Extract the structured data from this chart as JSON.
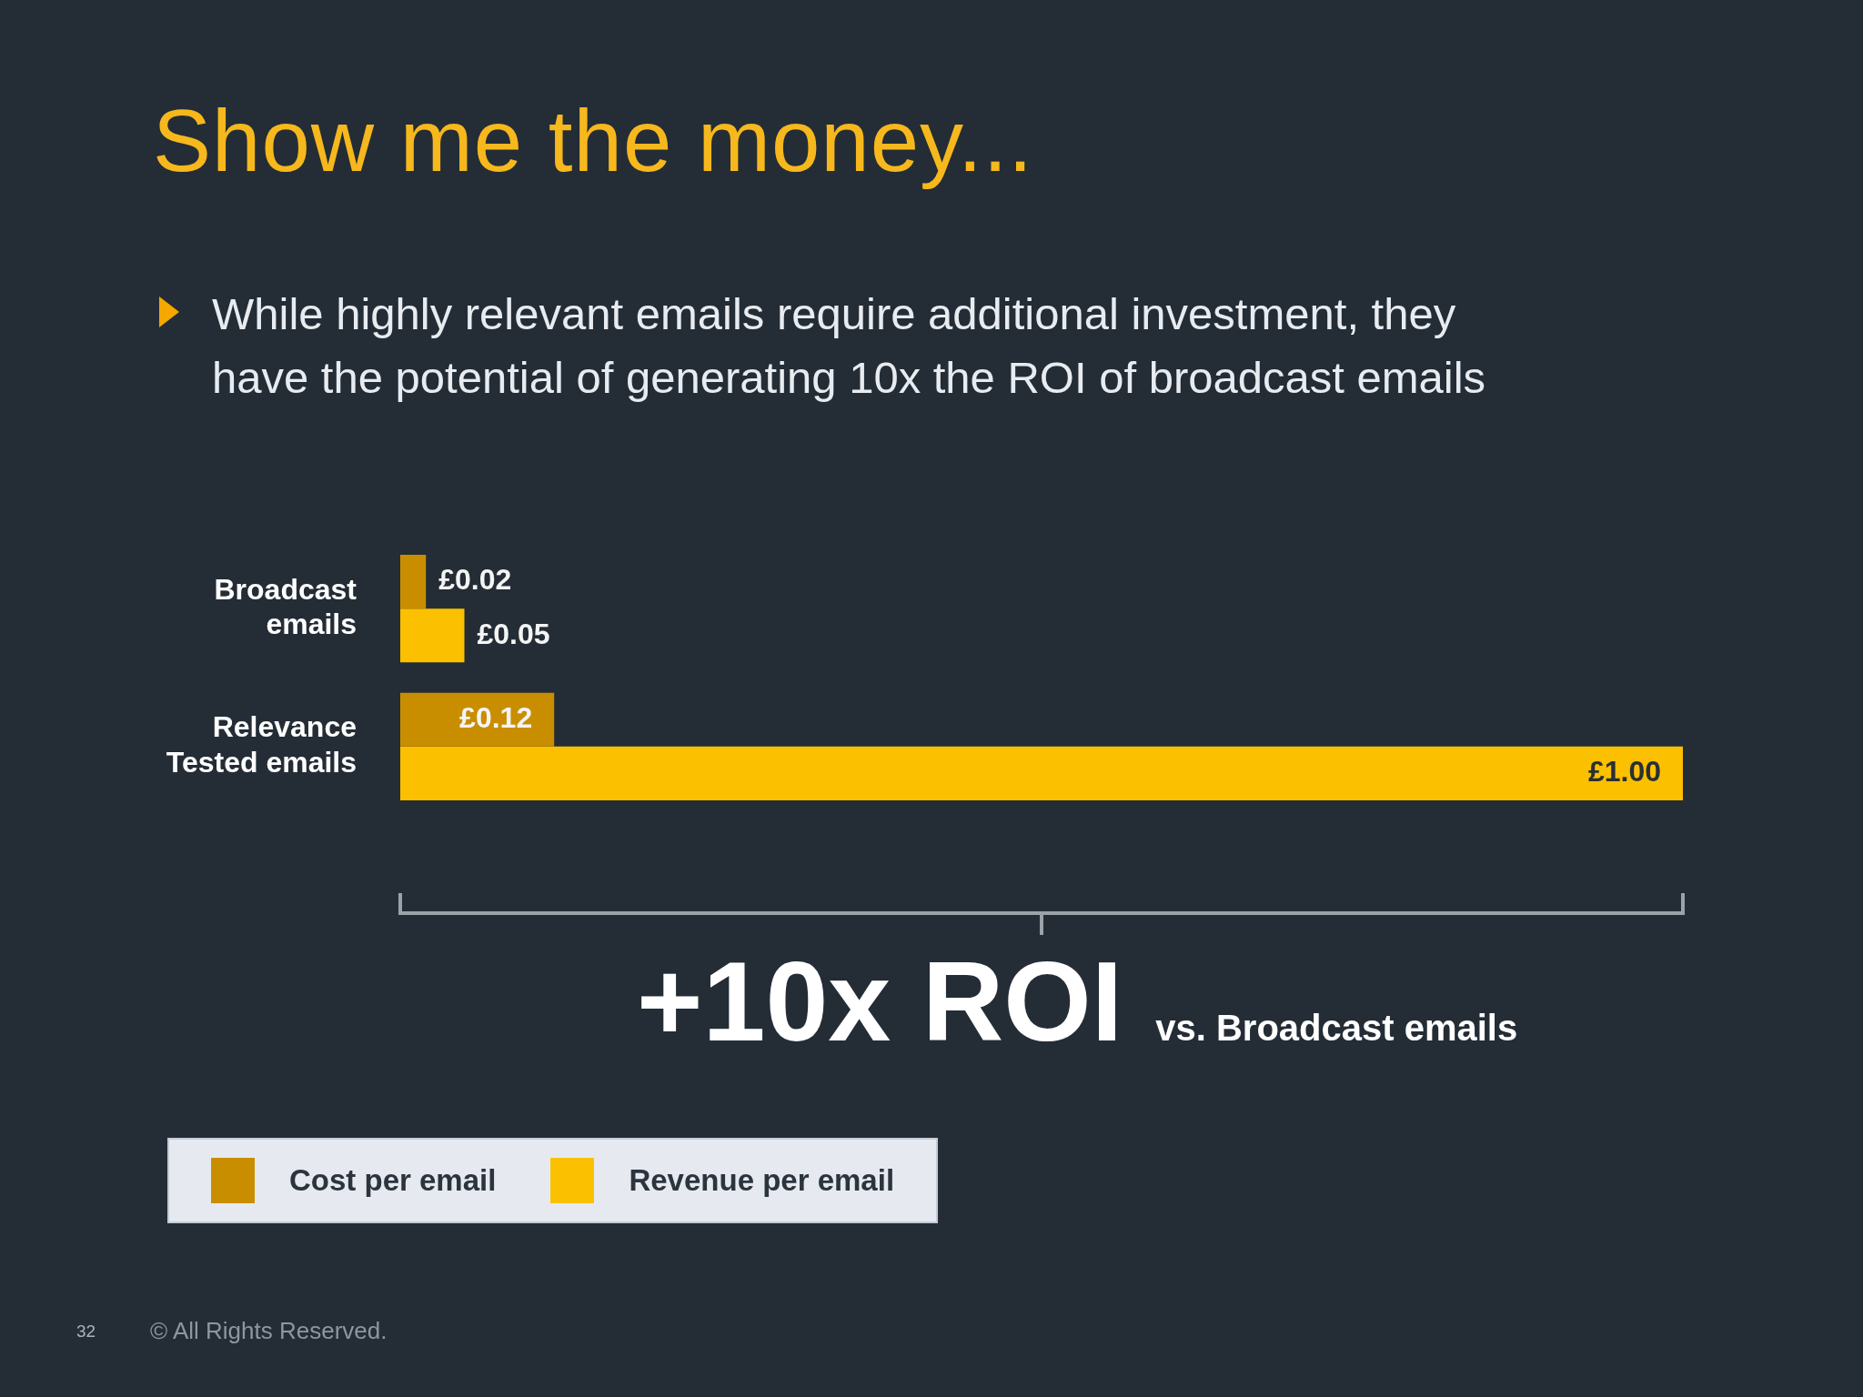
{
  "chart_data": {
    "type": "bar",
    "orientation": "horizontal",
    "title": "Show me the money...",
    "subtitle": "While highly relevant emails require additional investment, they have the potential of generating 10x the ROI of broadcast emails",
    "categories": [
      "Broadcast emails",
      "Relevance Tested emails"
    ],
    "series": [
      {
        "name": "Cost per email",
        "color": "#c98e00",
        "values": [
          0.02,
          0.12
        ],
        "value_labels": [
          "£0.02",
          "£0.12"
        ]
      },
      {
        "name": "Revenue per email",
        "color": "#fbc000",
        "values": [
          0.05,
          1.0
        ],
        "value_labels": [
          "£0.05",
          "£1.00"
        ]
      }
    ],
    "xlim": [
      0,
      1
    ],
    "tick_labels": "y",
    "legend": "bottom left",
    "annotations": [
      "+10x ROI",
      "vs. Broadcast emails",
      "32",
      "© All Rights Reserved."
    ]
  }
}
